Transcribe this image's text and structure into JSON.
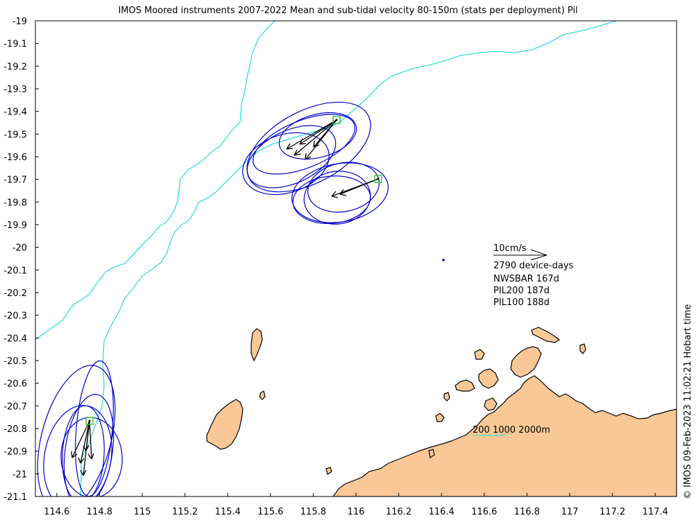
{
  "title": "IMOS Moored instruments 2007-2022 Mean and sub-tidal velocity 80-150m (stats per deployment) Pil",
  "timestamp": "© IMOS 09-Feb-2023 11:02:21 Hobart time",
  "axes": {
    "x_ticks": [
      "114.6",
      "114.8",
      "115",
      "115.2",
      "115.4",
      "115.6",
      "115.8",
      "116",
      "116.2",
      "116.4",
      "116.6",
      "116.8",
      "117",
      "117.2",
      "117.4"
    ],
    "y_ticks": [
      "-19",
      "-19.1",
      "-19.2",
      "-19.3",
      "-19.4",
      "-19.5",
      "-19.6",
      "-19.7",
      "-19.8",
      "-19.9",
      "-20",
      "-20.1",
      "-20.2",
      "-20.3",
      "-20.4",
      "-20.5",
      "-20.6",
      "-20.7",
      "-20.8",
      "-20.9",
      "-21",
      "-21.1"
    ],
    "xlim": [
      114.5,
      117.5
    ],
    "ylim": [
      -21.1,
      -19.0
    ]
  },
  "legend": {
    "scale_label": "10cm/s",
    "device_days": "2790 device-days",
    "stations": [
      "NWSBAR 167d",
      "PIL200 187d",
      "PIL100 188d"
    ],
    "isobath_label": "200 1000 2000m"
  },
  "colors": {
    "isobath": "#33dddd",
    "ellipse": "#0000cc",
    "arrow": "#000000",
    "mooring": "#33cc33",
    "land": "#f9c896",
    "coast": "#000000"
  }
}
